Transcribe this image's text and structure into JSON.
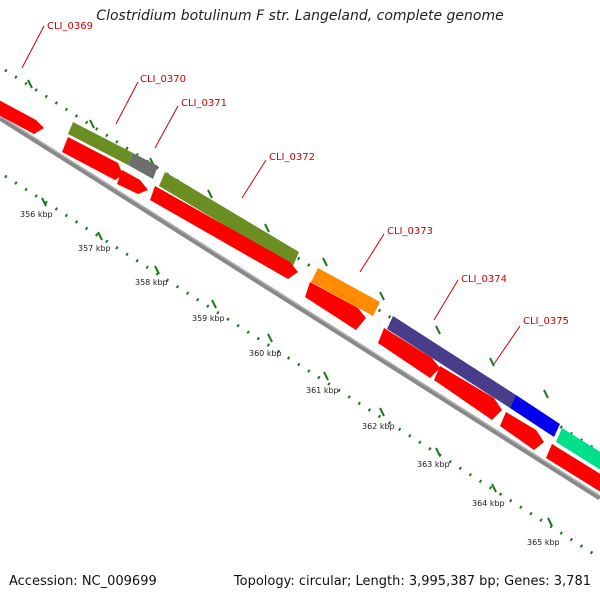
{
  "title": "Clostridium botulinum F str. Langeland, complete genome",
  "footer": {
    "accession": "Accession: NC_009699",
    "summary": "Topology: circular; Length: 3,995,387 bp; Genes: 3,781"
  },
  "gene_labels": [
    "CLI_0369",
    "CLI_0370",
    "CLI_0371",
    "CLI_0372",
    "CLI_0373",
    "CLI_0374",
    "CLI_0375"
  ],
  "kbp_ticks": [
    "356 kbp",
    "357 kbp",
    "358 kbp",
    "359 kbp",
    "360 kbp",
    "361 kbp",
    "362 kbp",
    "363 kbp",
    "364 kbp",
    "365 kbp"
  ],
  "colors": {
    "cds": "#ff0000",
    "backbone": "#888888",
    "tick": "#1a7a1a",
    "label": "#cc0000",
    "olive": "#6b8e23",
    "gray": "#6e6e6e",
    "orange": "#ff8c00",
    "slate": "#483d8b",
    "blue": "#0000ee",
    "teal": "#00e08a"
  }
}
